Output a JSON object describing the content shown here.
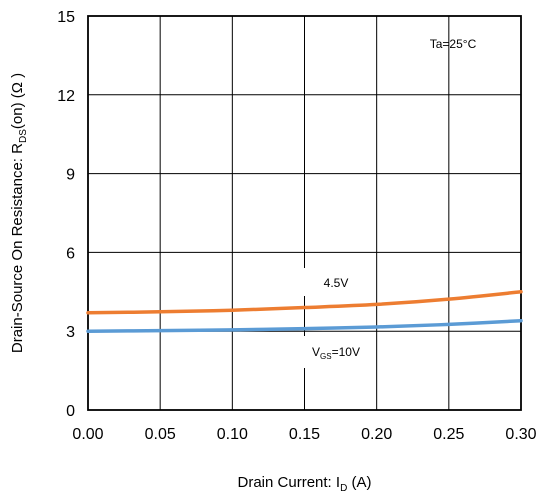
{
  "chart_data": {
    "type": "line",
    "xlabel": {
      "main": "Drain Current: I",
      "sub": "D",
      "tail": " (A)"
    },
    "ylabel": {
      "main": "Drain-Source On Resistance: R",
      "sub": "DS",
      "tail": "(on) (Ω )"
    },
    "xlim": [
      0,
      0.3
    ],
    "ylim": [
      0,
      15
    ],
    "x_ticks": [
      "0.00",
      "0.05",
      "0.10",
      "0.15",
      "0.20",
      "0.25",
      "0.30"
    ],
    "y_ticks": [
      "0",
      "3",
      "6",
      "9",
      "12",
      "15"
    ],
    "grid": true,
    "annotations": {
      "temperature": "Ta=25°C"
    },
    "series": [
      {
        "name": "4.5V",
        "color": "#ED7D31",
        "x": [
          0.0,
          0.05,
          0.1,
          0.15,
          0.2,
          0.25,
          0.3
        ],
        "y": [
          3.7,
          3.74,
          3.8,
          3.9,
          4.02,
          4.22,
          4.5
        ]
      },
      {
        "name": "VGS=10V",
        "label_main": "V",
        "label_sub": "GS",
        "label_tail": "=10V",
        "color": "#5B9BD5",
        "x": [
          0.0,
          0.05,
          0.1,
          0.15,
          0.2,
          0.25,
          0.3
        ],
        "y": [
          3.0,
          3.02,
          3.05,
          3.1,
          3.16,
          3.26,
          3.4
        ]
      }
    ]
  }
}
